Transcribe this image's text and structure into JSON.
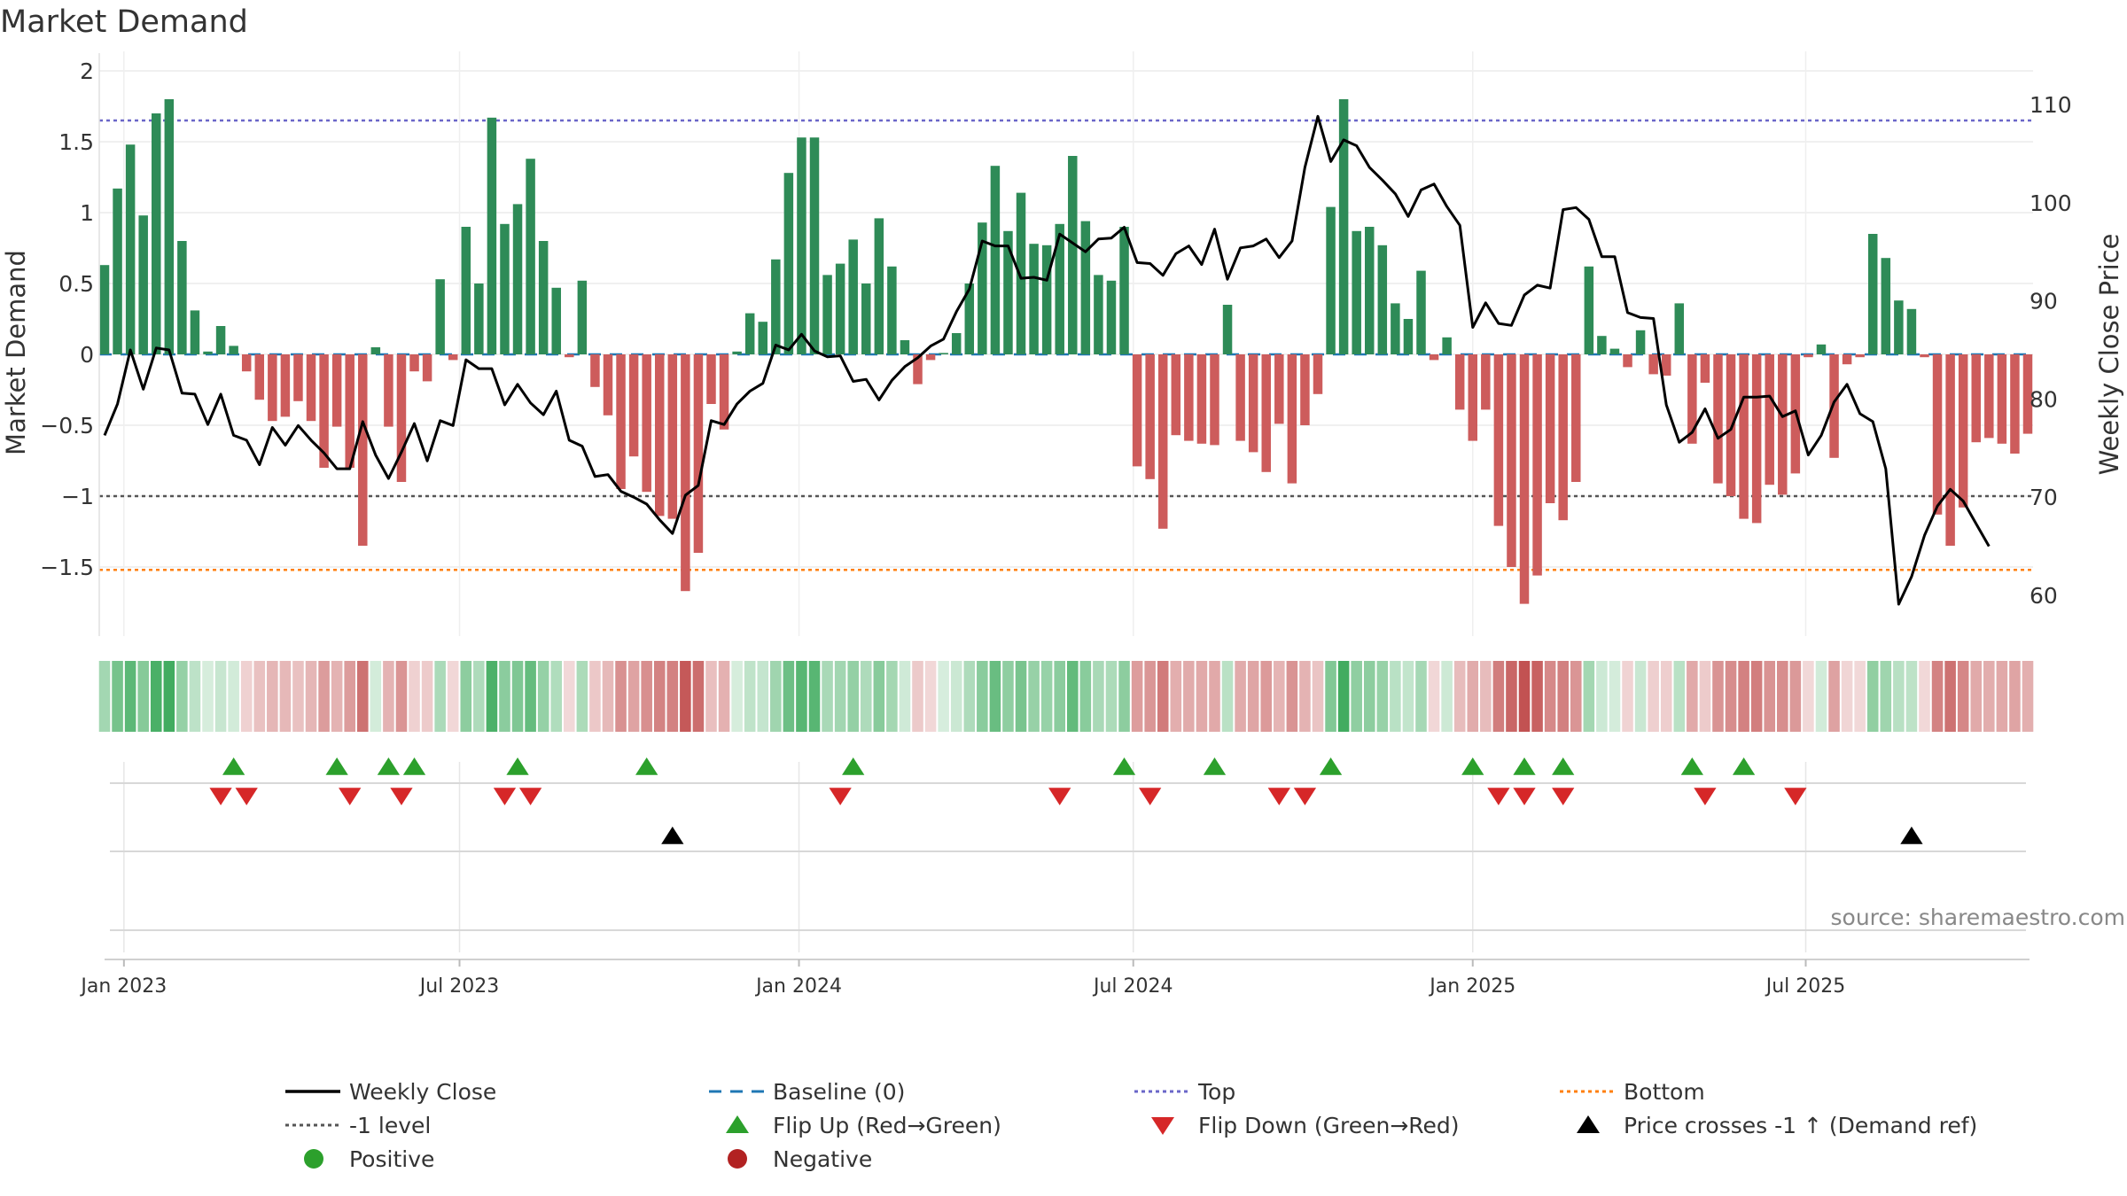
{
  "chart_data": {
    "type": "bar",
    "title": "Market Demand",
    "ylabel": "Market Demand",
    "y2label": "Weekly Close Price",
    "ylim": [
      -1.9,
      2.0
    ],
    "y2lim": [
      56,
      113
    ],
    "yticks": [
      {
        "v": 2,
        "label": "2"
      },
      {
        "v": 1.5,
        "label": "1.5"
      },
      {
        "v": 1,
        "label": "1"
      },
      {
        "v": 0.5,
        "label": "0.5"
      },
      {
        "v": 0,
        "label": "0"
      },
      {
        "v": -0.5,
        "label": "−0.5"
      },
      {
        "v": -1,
        "label": "−1"
      },
      {
        "v": -1.5,
        "label": "−1.5"
      }
    ],
    "y2ticks": [
      {
        "v": 110,
        "label": "110"
      },
      {
        "v": 100,
        "label": "100"
      },
      {
        "v": 90,
        "label": "90"
      },
      {
        "v": 80,
        "label": "80"
      },
      {
        "v": 70,
        "label": "70"
      },
      {
        "v": 60,
        "label": "60"
      }
    ],
    "xticks": [
      {
        "i": 1.5,
        "label": "Jan 2023"
      },
      {
        "i": 27.5,
        "label": "Jul 2023"
      },
      {
        "i": 53.8,
        "label": "Jan 2024"
      },
      {
        "i": 79.7,
        "label": "Jul 2024"
      },
      {
        "i": 106.0,
        "label": "Jan 2025"
      },
      {
        "i": 131.8,
        "label": "Jul 2025"
      }
    ],
    "top_level": 1.65,
    "minus1_level": -1.0,
    "bottom_level": -1.52,
    "demand": [
      0.63,
      1.17,
      1.48,
      0.98,
      1.7,
      1.8,
      0.8,
      0.31,
      0.02,
      0.2,
      0.06,
      -0.12,
      -0.32,
      -0.47,
      -0.44,
      -0.33,
      -0.47,
      -0.8,
      -0.51,
      -0.8,
      -1.35,
      0.05,
      -0.51,
      -0.9,
      -0.12,
      -0.19,
      0.53,
      -0.04,
      0.9,
      0.5,
      1.67,
      0.92,
      1.06,
      1.38,
      0.8,
      0.47,
      -0.02,
      0.52,
      -0.23,
      -0.43,
      -0.95,
      -0.72,
      -0.97,
      -1.14,
      -1.16,
      -1.67,
      -1.4,
      -0.35,
      -0.53,
      0.02,
      0.29,
      0.23,
      0.67,
      1.28,
      1.53,
      1.53,
      0.56,
      0.64,
      0.81,
      0.5,
      0.96,
      0.62,
      0.1,
      -0.21,
      -0.04,
      0.01,
      0.15,
      0.5,
      0.93,
      1.33,
      0.87,
      1.14,
      0.78,
      0.77,
      0.92,
      1.4,
      0.94,
      0.56,
      0.52,
      0.9,
      -0.79,
      -0.88,
      -1.23,
      -0.57,
      -0.61,
      -0.63,
      -0.64,
      0.35,
      -0.61,
      -0.69,
      -0.83,
      -0.49,
      -0.91,
      -0.5,
      -0.28,
      1.04,
      1.8,
      0.87,
      0.9,
      0.77,
      0.36,
      0.25,
      0.59,
      -0.04,
      0.12,
      -0.39,
      -0.61,
      -0.39,
      -1.21,
      -1.5,
      -1.76,
      -1.56,
      -1.05,
      -1.17,
      -0.9,
      0.62,
      0.13,
      0.04,
      -0.09,
      0.17,
      -0.14,
      -0.15,
      0.36,
      -0.63,
      -0.2,
      -0.91,
      -1.0,
      -1.16,
      -1.19,
      -0.92,
      -0.99,
      -0.84,
      -0.02,
      0.07,
      -0.73,
      -0.07,
      -0.02,
      0.85,
      0.68,
      0.38,
      0.32,
      -0.02,
      -1.13,
      -1.35,
      -1.08,
      -0.62,
      -0.59,
      -0.63,
      -0.7,
      -0.56
    ],
    "price": [
      76.3,
      79.5,
      85.0,
      81.0,
      85.2,
      85.0,
      80.6,
      80.5,
      77.4,
      80.5,
      76.3,
      75.8,
      73.3,
      77.1,
      75.3,
      77.3,
      75.8,
      74.5,
      72.9,
      72.9,
      77.7,
      74.3,
      71.9,
      74.6,
      77.5,
      73.7,
      77.8,
      77.3,
      84.0,
      83.1,
      83.1,
      79.4,
      81.5,
      79.6,
      78.4,
      80.8,
      75.8,
      75.2,
      72.1,
      72.3,
      70.6,
      70.0,
      69.3,
      67.7,
      66.3,
      70.2,
      71.2,
      77.8,
      77.4,
      79.5,
      80.8,
      81.6,
      85.5,
      85.0,
      86.6,
      84.9,
      84.3,
      84.4,
      81.8,
      82.0,
      79.9,
      81.9,
      83.3,
      84.2,
      85.4,
      86.1,
      88.9,
      91.2,
      96.1,
      95.6,
      95.6,
      92.3,
      92.4,
      92.1,
      96.8,
      95.9,
      95.0,
      96.3,
      96.4,
      97.5,
      93.9,
      93.8,
      92.6,
      94.8,
      95.6,
      93.7,
      97.3,
      92.2,
      95.4,
      95.6,
      96.3,
      94.4,
      96.1,
      103.6,
      108.8,
      104.2,
      106.4,
      105.8,
      103.6,
      102.3,
      100.9,
      98.6,
      101.3,
      101.9,
      99.6,
      97.7,
      87.3,
      89.8,
      87.7,
      87.5,
      90.6,
      91.6,
      91.3,
      99.3,
      99.5,
      98.3,
      94.5,
      94.5,
      88.8,
      88.3,
      88.2,
      79.4,
      75.6,
      76.6,
      79.0,
      76.0,
      76.9,
      80.2,
      80.2,
      80.3,
      78.2,
      78.8,
      74.3,
      76.3,
      79.7,
      81.5,
      78.5,
      77.7,
      72.9,
      59.1,
      61.9,
      66.1,
      69.1,
      70.8,
      69.6,
      67.3,
      65.0
    ],
    "flip_up": [
      10,
      18,
      22,
      24,
      32,
      42,
      58,
      79,
      86,
      95,
      106,
      110,
      113,
      123,
      127
    ],
    "flip_down": [
      9,
      11,
      19,
      23,
      31,
      33,
      57,
      74,
      81,
      91,
      93,
      108,
      110,
      113,
      124,
      131
    ],
    "price_cross": [
      44,
      140
    ],
    "legend": [
      {
        "label": "Weekly Close",
        "icon": "line",
        "color": "#000000"
      },
      {
        "label": "Baseline (0)",
        "icon": "dash",
        "color": "#1f77b4"
      },
      {
        "label": "Top",
        "icon": "dot",
        "color": "#6a66c8"
      },
      {
        "label": "Bottom",
        "icon": "dot",
        "color": "#ff7f0e"
      },
      {
        "label": "-1 level",
        "icon": "dot",
        "color": "#555555"
      },
      {
        "label": "Flip Up (Red→Green)",
        "icon": "tri-up",
        "color": "#2ca02c"
      },
      {
        "label": "Flip Down (Green→Red)",
        "icon": "tri-down",
        "color": "#d62728"
      },
      {
        "label": "Price crosses -1 ↑ (Demand ref)",
        "icon": "tri-up",
        "color": "#000000"
      },
      {
        "label": "Positive",
        "icon": "circle",
        "color": "#2ca02c"
      },
      {
        "label": "Negative",
        "icon": "circle",
        "color": "#b22222"
      }
    ],
    "source": "source: sharemaestro.com",
    "colors": {
      "pos": "#2e8b57",
      "neg": "#cd5c5c",
      "up": "#2ca02c",
      "down": "#d62728",
      "price": "#000000",
      "top": "#6a66c8",
      "bottom": "#ff7f0e",
      "minus1": "#555555",
      "baseline": "#1f77b4"
    }
  }
}
